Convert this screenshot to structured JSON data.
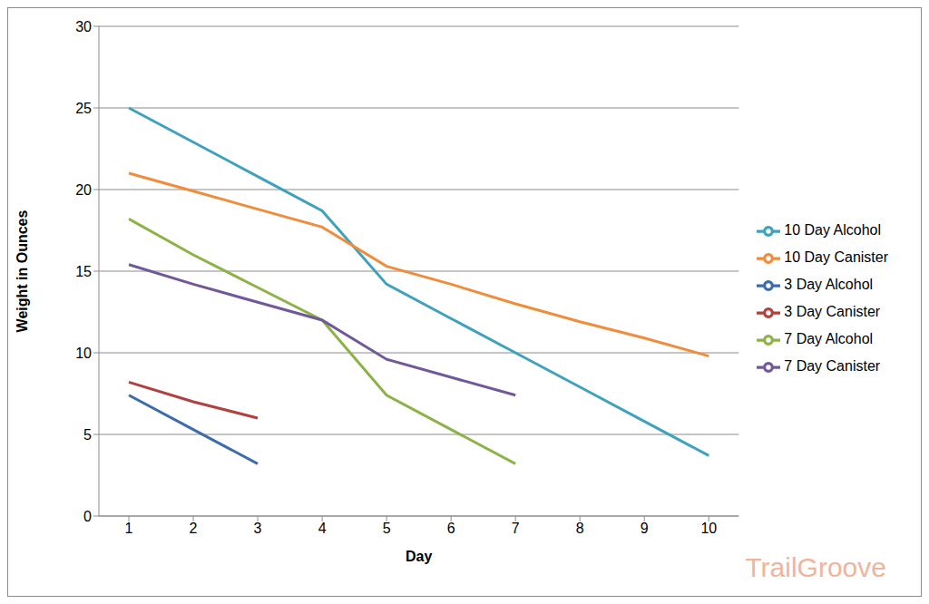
{
  "chart_data": {
    "type": "line",
    "x_label": "Day",
    "y_label": "Weight in Ounces",
    "watermark": "TrailGroove",
    "categories": [
      "1",
      "2",
      "3",
      "4",
      "5",
      "6",
      "7",
      "8",
      "9",
      "10"
    ],
    "series": [
      {
        "name": "3 Day Alcohol",
        "color": "#3c6cab",
        "values": [
          7.4,
          5.3,
          3.2,
          null,
          null,
          null,
          null,
          null,
          null,
          null
        ]
      },
      {
        "name": "3 Day Canister",
        "color": "#b0413e",
        "values": [
          8.2,
          7.0,
          6.0,
          null,
          null,
          null,
          null,
          null,
          null,
          null
        ]
      },
      {
        "name": "7 Day Alcohol",
        "color": "#8db248",
        "values": [
          18.2,
          16.0,
          14.0,
          12.0,
          7.4,
          5.3,
          3.2,
          null,
          null,
          null
        ]
      },
      {
        "name": "7 Day Canister",
        "color": "#71589a",
        "values": [
          15.4,
          14.2,
          13.1,
          12.0,
          9.6,
          8.5,
          7.4,
          null,
          null,
          null
        ]
      },
      {
        "name": "10 Day Alcohol",
        "color": "#3ea2bd",
        "values": [
          25.0,
          22.9,
          20.8,
          18.7,
          14.2,
          12.1,
          10.0,
          7.9,
          5.8,
          3.7
        ]
      },
      {
        "name": "10 Day Canister",
        "color": "#ef8d3c",
        "values": [
          21.0,
          19.9,
          18.8,
          17.7,
          15.3,
          14.2,
          13.0,
          11.9,
          10.9,
          9.8
        ]
      }
    ],
    "ylim": [
      0,
      30
    ],
    "yticks": [
      0,
      5,
      10,
      15,
      20,
      25,
      30
    ],
    "grid": true,
    "legend": "right"
  }
}
